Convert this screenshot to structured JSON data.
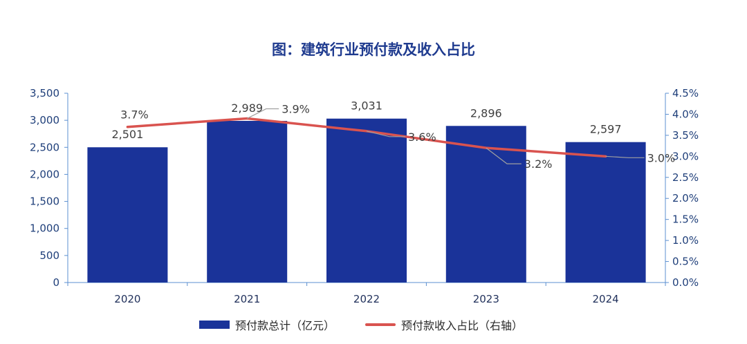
{
  "chart_data": {
    "type": "bar",
    "title": "图：建筑行业预付款及收入占比",
    "categories": [
      "2020",
      "2021",
      "2022",
      "2023",
      "2024"
    ],
    "series": [
      {
        "name": "预付款总计（亿元）",
        "type": "bar",
        "axis": "left",
        "values": [
          2501,
          2989,
          3031,
          2896,
          2597
        ],
        "labels": [
          "2,501",
          "2,989",
          "3,031",
          "2,896",
          "2,597"
        ],
        "color": "#1a3399"
      },
      {
        "name": "预付款收入占比（右轴）",
        "type": "line",
        "axis": "right",
        "values": [
          3.7,
          3.9,
          3.6,
          3.2,
          3.0
        ],
        "labels": [
          "3.7%",
          "3.9%",
          "3.6%",
          "3.2%",
          "3.0%"
        ],
        "color": "#d9534f"
      }
    ],
    "y_left": {
      "lim": [
        0,
        3500
      ],
      "ticks": [
        "0",
        "500",
        "1,000",
        "1,500",
        "2,000",
        "2,500",
        "3,000",
        "3,500"
      ]
    },
    "y_right": {
      "lim": [
        0.0,
        4.5
      ],
      "ticks": [
        "0.0%",
        "0.5%",
        "1.0%",
        "1.5%",
        "2.0%",
        "2.5%",
        "3.0%",
        "3.5%",
        "4.0%",
        "4.5%"
      ]
    },
    "grid": false,
    "legend_position": "bottom-center"
  }
}
